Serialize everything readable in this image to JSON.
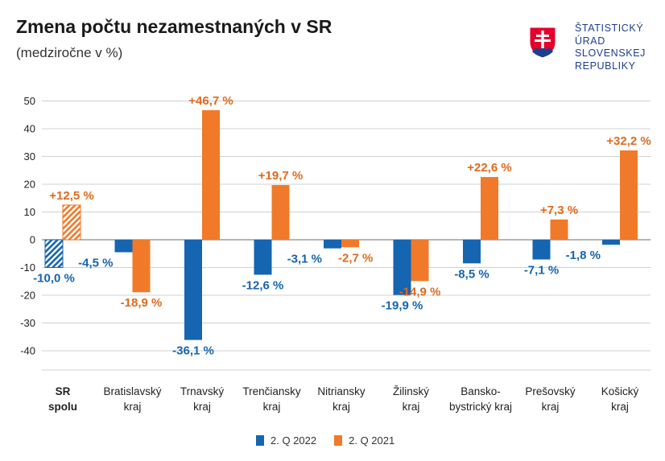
{
  "header": {
    "title": "Zmena počtu nezamestnaných v SR",
    "subtitle": "(medziročne v %)"
  },
  "logo": {
    "lines": [
      "ŠTATISTICKÝ",
      "ÚRAD",
      "SLOVENSKEJ",
      "REPUBLIKY"
    ],
    "icon": "slovak-coat-of-arms"
  },
  "colors": {
    "series_2022": "#1565b0",
    "series_2021": "#f07a2a",
    "label_2022": "#1565b0",
    "label_2021": "#e06a1e",
    "grid": "#d0d0d0",
    "axis_text": "#222222"
  },
  "chart_data": {
    "type": "bar",
    "ylim": [
      -50,
      55
    ],
    "yticks": [
      50,
      40,
      30,
      20,
      10,
      0,
      -10,
      -20,
      -30,
      -40
    ],
    "grid": true,
    "legend_position": "bottom-center",
    "categories": [
      [
        "SR",
        "spolu"
      ],
      [
        "Bratislavský",
        "kraj"
      ],
      [
        "Trnavský",
        "kraj"
      ],
      [
        "Trenčiansky",
        "kraj"
      ],
      [
        "Nitriansky",
        "kraj"
      ],
      [
        "Žilinský",
        "kraj"
      ],
      [
        "Bansko-",
        "bystrický kraj"
      ],
      [
        "Prešovský",
        "kraj"
      ],
      [
        "Košický",
        "kraj"
      ]
    ],
    "series": [
      {
        "name": "2. Q 2022",
        "values": [
          -10.0,
          -4.5,
          -36.1,
          -12.6,
          -3.1,
          -19.9,
          -8.5,
          -7.1,
          -1.8
        ],
        "labels": [
          "-10,0 %",
          "-4,5 %",
          "-36,1 %",
          "-12,6 %",
          "-3,1 %",
          "-19,9 %",
          "-8,5 %",
          "-7,1 %",
          "-1,8 %"
        ]
      },
      {
        "name": "2. Q 2021",
        "values": [
          12.5,
          -18.9,
          46.7,
          19.7,
          -2.7,
          -14.9,
          22.6,
          7.3,
          32.2
        ],
        "labels": [
          "+12,5 %",
          "-18,9 %",
          "+46,7 %",
          "+19,7 %",
          "-2,7 %",
          "-14,9 %",
          "+22,6 %",
          "+7,3 %",
          "+32,2 %"
        ]
      }
    ]
  }
}
